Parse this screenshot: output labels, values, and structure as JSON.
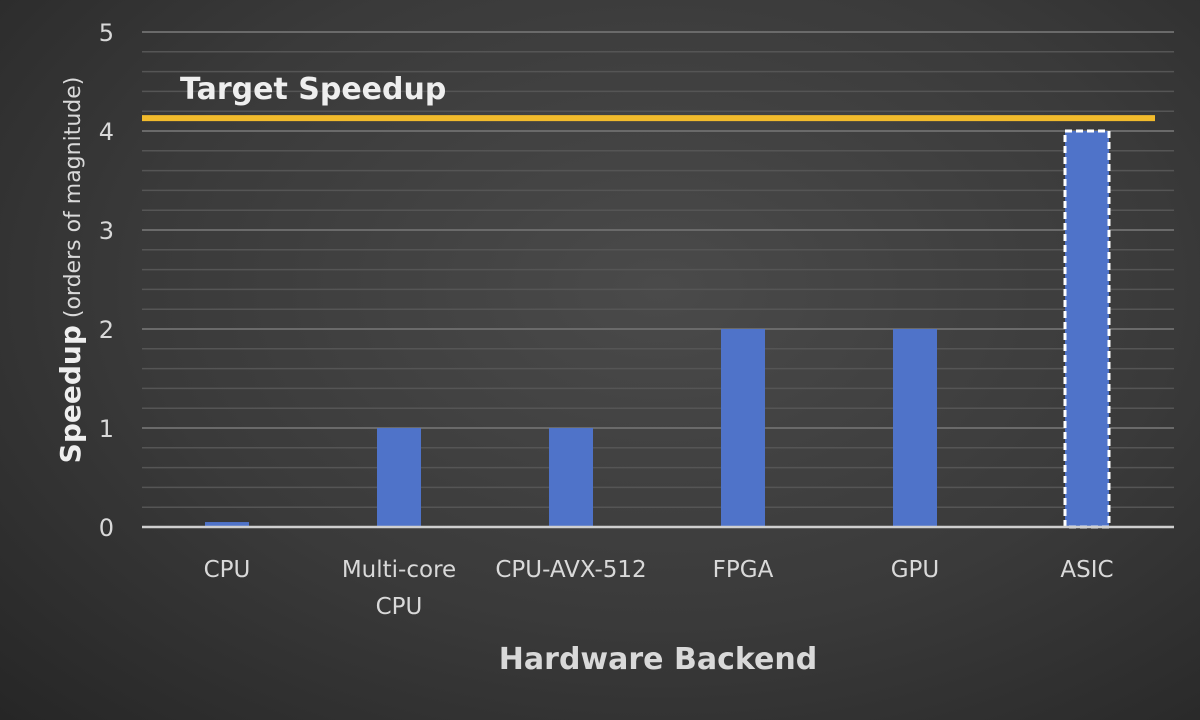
{
  "chart_data": {
    "type": "bar",
    "categories": [
      [
        "CPU"
      ],
      [
        "Multi-core",
        "CPU"
      ],
      [
        "CPU-AVX-512"
      ],
      [
        "FPGA"
      ],
      [
        "GPU"
      ],
      [
        "ASIC"
      ]
    ],
    "values": [
      0.05,
      1,
      1,
      2,
      2,
      4
    ],
    "xlabel": "Hardware Backend",
    "ylabel_bold": "Speedup",
    "ylabel_rest": " (orders of magnitude)",
    "ylim": [
      0,
      5
    ],
    "yticks": [
      "0",
      "1",
      "2",
      "3",
      "4",
      "5"
    ],
    "grid": true,
    "reference_line": {
      "label": "Target Speedup",
      "value": 4.13,
      "color": "#f2bb2c"
    },
    "bar_color": "#4f73c9",
    "highlighted_bar": "ASIC"
  }
}
